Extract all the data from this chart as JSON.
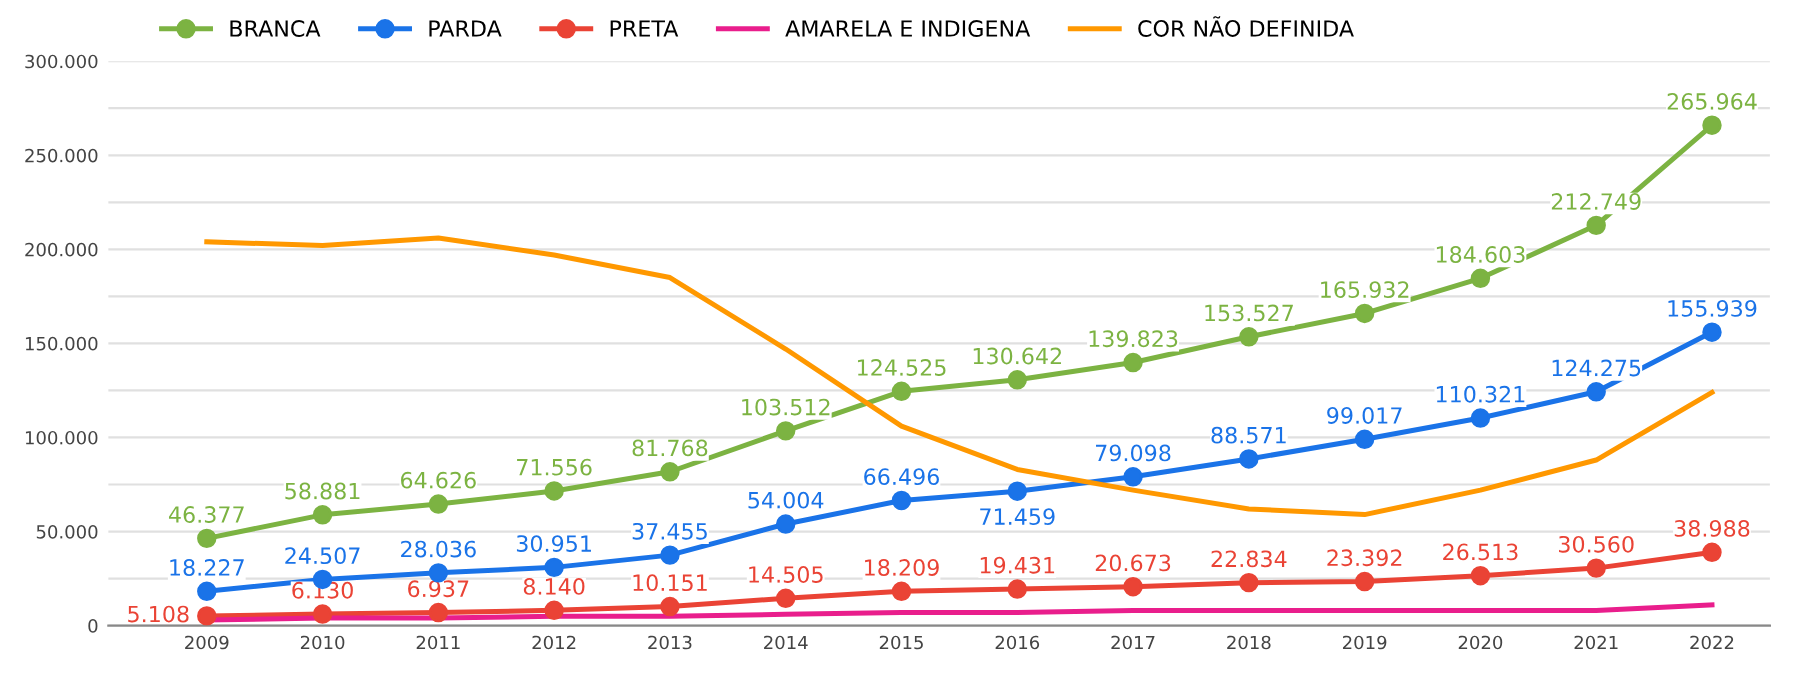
{
  "chart_data": {
    "type": "line",
    "categories": [
      "2009",
      "2010",
      "2011",
      "2012",
      "2013",
      "2014",
      "2015",
      "2016",
      "2017",
      "2018",
      "2019",
      "2020",
      "2021",
      "2022"
    ],
    "series": [
      {
        "name": "BRANCA",
        "color": "#7cb342",
        "marker": "circle",
        "values": [
          46377,
          58881,
          64626,
          71556,
          81768,
          103512,
          124525,
          130642,
          139823,
          153527,
          165932,
          184603,
          212749,
          265964
        ],
        "value_labels": [
          "46.377",
          "58.881",
          "64.626",
          "71.556",
          "81.768",
          "103.512",
          "124.525",
          "130.642",
          "139.823",
          "153.527",
          "165.932",
          "184.603",
          "212.749",
          "265.964"
        ]
      },
      {
        "name": "PARDA",
        "color": "#1a73e8",
        "marker": "circle",
        "values": [
          18227,
          24507,
          28036,
          30951,
          37455,
          54004,
          66496,
          71459,
          79098,
          88571,
          99017,
          110321,
          124275,
          155939
        ],
        "value_labels": [
          "18.227",
          "24.507",
          "28.036",
          "30.951",
          "37.455",
          "54.004",
          "66.496",
          "71.459",
          "79.098",
          "88.571",
          "99.017",
          "110.321",
          "124.275",
          "155.939"
        ]
      },
      {
        "name": "PRETA",
        "color": "#ea4335",
        "marker": "circle",
        "values": [
          5108,
          6130,
          6937,
          8140,
          10151,
          14505,
          18209,
          19431,
          20673,
          22834,
          23392,
          26513,
          30560,
          38988
        ],
        "value_labels": [
          "5.108",
          "6.130",
          "6.937",
          "8.140",
          "10.151",
          "14.505",
          "18.209",
          "19.431",
          "20.673",
          "22.834",
          "23.392",
          "26.513",
          "30.560",
          "38.988"
        ]
      },
      {
        "name": "AMARELA E INDIGENA",
        "color": "#e91e8c",
        "marker": "none",
        "values": [
          3000,
          4000,
          4000,
          5000,
          5000,
          6000,
          7000,
          7000,
          8000,
          8000,
          8000,
          8000,
          8000,
          11000
        ]
      },
      {
        "name": "COR NÃO DEFINIDA",
        "color": "#ff9800",
        "marker": "none",
        "values": [
          204000,
          202000,
          206000,
          197000,
          185000,
          147000,
          106000,
          83000,
          72000,
          62000,
          59000,
          72000,
          88000,
          124000
        ]
      }
    ],
    "ylim": [
      0,
      300000
    ],
    "yticks": [
      0,
      {
        "value": 25000,
        "label": null
      },
      {
        "value": 50000,
        "label": "50.000"
      },
      {
        "value": 75000,
        "label": null
      },
      {
        "value": 100000,
        "label": "100.000"
      },
      {
        "value": 125000,
        "label": null
      },
      {
        "value": 150000,
        "label": "150.000"
      },
      {
        "value": 175000,
        "label": null
      },
      {
        "value": 200000,
        "label": "200.000"
      },
      {
        "value": 225000,
        "label": null
      },
      {
        "value": 250000,
        "label": "250.000"
      },
      {
        "value": 275000,
        "label": null
      },
      {
        "value": 300000,
        "label": "300.000"
      }
    ],
    "grid": "y",
    "legend": "top left",
    "line_style": "solid"
  }
}
